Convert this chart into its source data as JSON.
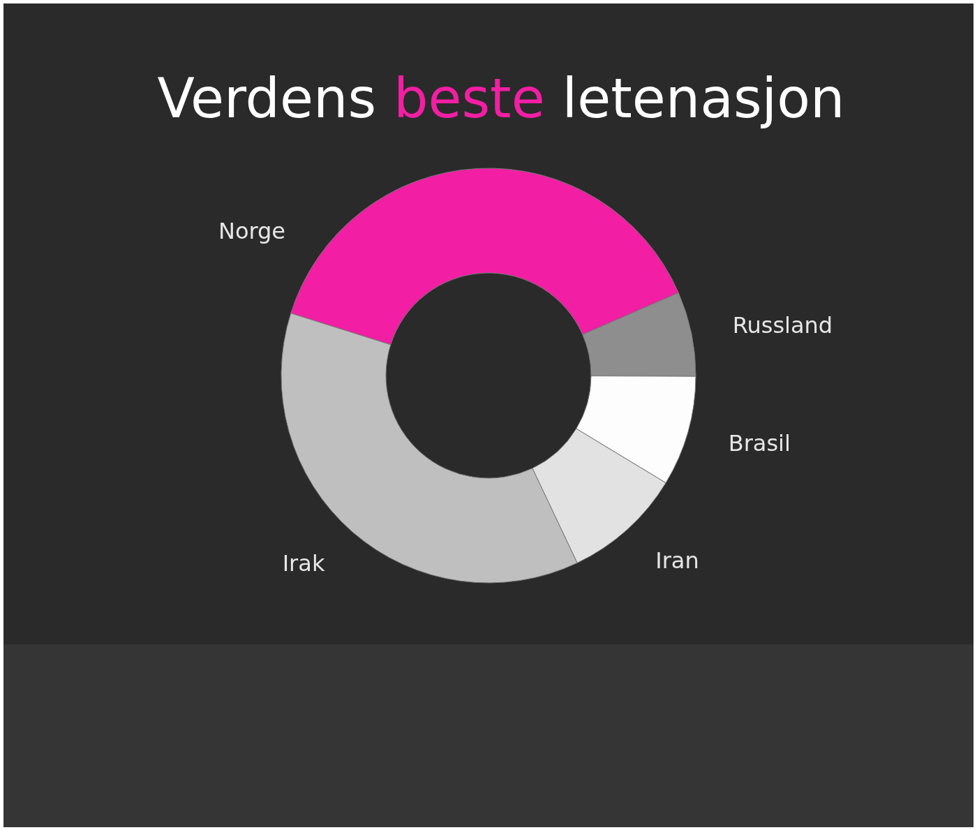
{
  "chart_data": {
    "type": "donut",
    "title": "Verdens beste letenasjon",
    "categories": [
      "Norge",
      "Russland",
      "Brasil",
      "Iran",
      "Irak"
    ],
    "values": [
      38.6,
      6.6,
      8.6,
      9.3,
      36.9
    ],
    "colors": [
      "#f21ea3",
      "#8e8e8e",
      "#fdfdfd",
      "#e2e2e2",
      "#bfbfbf"
    ],
    "legend": false
  }
}
